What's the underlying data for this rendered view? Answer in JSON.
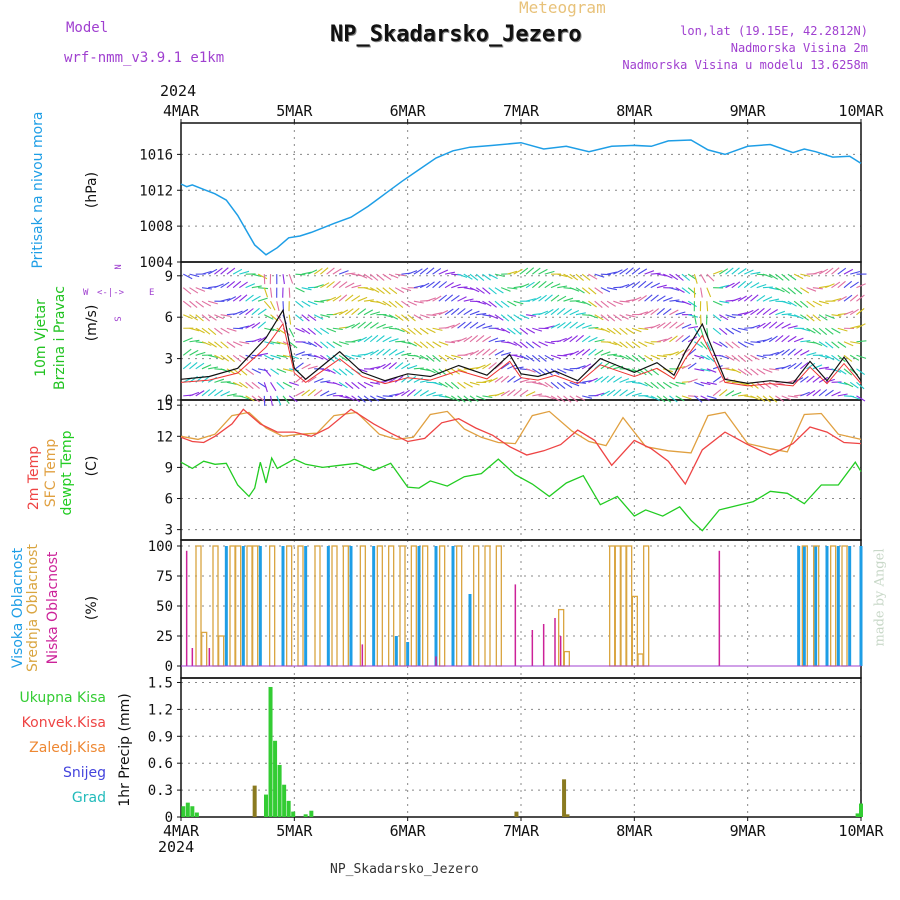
{
  "header": {
    "chart_name": "Meteogram",
    "station": "NP_Skadarsko_Jezero",
    "model_label": "Model",
    "model_name": "wrf-nmm_v3.9.1  e1km",
    "lonlat": "lon,lat (19.15E, 42.2812N)",
    "altitude": "Nadmorska Visina 2m",
    "model_altitude": "Nadmorska Visina u modelu 13.6258m",
    "year_top": "2024",
    "year_bottom": "2024",
    "footer_station": "NP_Skadarsko_Jezero",
    "credit": "made by Angel"
  },
  "colors": {
    "pressure": "#1e9ee6",
    "wind_legend": "#22c322",
    "temp2m": "#ee4444",
    "sfc": "#e0a040",
    "dewpt": "#22cc22",
    "high": "#1e9ee6",
    "mid": "#d9a540",
    "low": "#cc2299",
    "accent_purple": "#a040d0",
    "meteogram_title": "#e8c27a",
    "grid": "#888888",
    "total_precip": "#33cc33",
    "conv_precip": "#ee4444",
    "frozen_precip": "#ee8833",
    "snow": "#4444dd",
    "graupel": "#22bbbb",
    "olive_precip": "#8a7a20"
  },
  "x_axis": {
    "dates": [
      "4MAR",
      "5MAR",
      "6MAR",
      "7MAR",
      "8MAR",
      "9MAR",
      "10MAR"
    ]
  },
  "panels": {
    "pressure": {
      "label": "Pritisak na nivou mora",
      "unit": "(hPa)",
      "ticks": [
        "1004",
        "1008",
        "1012",
        "1016"
      ]
    },
    "wind": {
      "label_line1": "10m Vjetar",
      "label_line2": "Brzina i Pravac",
      "unit": "(m/s)",
      "ticks": [
        "0",
        "3",
        "6",
        "9"
      ],
      "compass": {
        "n": "N",
        "e": "E",
        "w": "W",
        "s": "S"
      }
    },
    "temp": {
      "label_2m": "2m Temp",
      "label_sfc": "SFC Temp",
      "label_dew": "dewpt Temp",
      "unit": "(C)",
      "ticks": [
        "3",
        "6",
        "9",
        "12",
        "15"
      ]
    },
    "cloud": {
      "label_high": "Visoka Oblacnost",
      "label_mid": "Srednja Oblacnost",
      "label_low": "Niska Oblacnost",
      "unit": "(%)",
      "ticks": [
        "0",
        "25",
        "50",
        "75",
        "100"
      ]
    },
    "precip": {
      "legend": [
        "Ukupna Kisa",
        "Konvek.Kisa",
        "Zaledj.Kisa",
        "Snijeg",
        "Grad"
      ],
      "unit": "1hr Precip (mm)",
      "ticks": [
        "0",
        "0.3",
        "0.6",
        "0.9",
        "1.2",
        "1.5"
      ]
    }
  },
  "chart_data": [
    {
      "type": "line",
      "title": "Pritisak na nivou mora",
      "ylabel": "(hPa)",
      "ylim": [
        1004,
        1019.5
      ],
      "x_unit": "days since 4MAR 00UTC",
      "series": [
        {
          "name": "Pritisak na nivou mora",
          "x": [
            0,
            0.05,
            0.1,
            0.2,
            0.3,
            0.4,
            0.5,
            0.6,
            0.65,
            0.75,
            0.85,
            0.95,
            1.05,
            1.15,
            1.25,
            1.35,
            1.5,
            1.65,
            1.8,
            1.95,
            2.1,
            2.25,
            2.4,
            2.55,
            2.75,
            3.0,
            3.2,
            3.4,
            3.6,
            3.8,
            4.0,
            4.15,
            4.3,
            4.5,
            4.65,
            4.8,
            5.0,
            5.2,
            5.4,
            5.5,
            5.6,
            5.75,
            5.9,
            6.0
          ],
          "values": [
            1012.7,
            1012.4,
            1012.6,
            1012.1,
            1011.6,
            1010.9,
            1009.2,
            1007.0,
            1005.9,
            1004.8,
            1005.6,
            1006.7,
            1006.9,
            1007.3,
            1007.8,
            1008.3,
            1009.0,
            1010.2,
            1011.6,
            1013.0,
            1014.3,
            1015.6,
            1016.4,
            1016.8,
            1017.0,
            1017.3,
            1016.6,
            1016.9,
            1016.3,
            1016.9,
            1017.0,
            1016.9,
            1017.5,
            1017.6,
            1016.5,
            1016.0,
            1016.9,
            1017.1,
            1016.2,
            1016.6,
            1016.3,
            1015.7,
            1015.8,
            1015.0
          ]
        }
      ]
    },
    {
      "type": "line",
      "title": "10m Vjetar Brzina i Pravac",
      "ylabel": "(m/s)",
      "ylim": [
        0,
        10
      ],
      "x_unit": "days since 4MAR 00UTC",
      "series": [
        {
          "name": "10m Vjetar",
          "x": [
            0,
            0.25,
            0.5,
            0.75,
            0.9,
            1.0,
            1.1,
            1.25,
            1.4,
            1.6,
            1.8,
            2.0,
            2.2,
            2.45,
            2.7,
            2.9,
            3.0,
            3.15,
            3.3,
            3.5,
            3.7,
            3.85,
            4.0,
            4.2,
            4.35,
            4.45,
            4.6,
            4.8,
            5.0,
            5.2,
            5.4,
            5.55,
            5.7,
            5.85,
            6.0
          ],
          "values": [
            1.5,
            1.7,
            2.3,
            4.5,
            6.5,
            2.3,
            1.5,
            2.5,
            3.5,
            2.0,
            1.4,
            1.9,
            1.7,
            2.5,
            1.8,
            3.3,
            1.9,
            1.7,
            2.1,
            1.4,
            3.0,
            2.5,
            2.0,
            2.7,
            1.8,
            3.5,
            5.5,
            1.5,
            1.2,
            1.4,
            1.2,
            2.8,
            1.4,
            3.1,
            1.4
          ]
        }
      ]
    },
    {
      "type": "line",
      "title": "Temp",
      "ylabel": "(C)",
      "ylim": [
        2,
        15.5
      ],
      "x_unit": "days since 4MAR 00UTC",
      "series": [
        {
          "name": "2m Temp",
          "x": [
            0,
            0.1,
            0.2,
            0.3,
            0.45,
            0.55,
            0.7,
            0.85,
            1.0,
            1.15,
            1.3,
            1.5,
            1.7,
            1.85,
            2.0,
            2.15,
            2.3,
            2.45,
            2.6,
            2.75,
            2.9,
            3.05,
            3.2,
            3.35,
            3.5,
            3.65,
            3.8,
            4.0,
            4.15,
            4.3,
            4.45,
            4.6,
            4.8,
            5.0,
            5.2,
            5.4,
            5.55,
            5.7,
            5.85,
            6.0
          ],
          "values": [
            11.9,
            11.5,
            11.4,
            12.0,
            13.2,
            14.6,
            13.2,
            12.4,
            12.4,
            12.0,
            12.8,
            14.6,
            13.2,
            12.3,
            11.5,
            11.8,
            13.3,
            13.7,
            12.8,
            12.1,
            11.0,
            10.2,
            10.6,
            11.2,
            12.6,
            11.6,
            9.2,
            11.6,
            10.8,
            9.6,
            7.4,
            10.7,
            12.4,
            11.2,
            10.2,
            11.3,
            12.9,
            12.4,
            11.4,
            11.3
          ]
        },
        {
          "name": "SFC Temp",
          "x": [
            0,
            0.15,
            0.3,
            0.45,
            0.6,
            0.75,
            0.9,
            1.05,
            1.2,
            1.35,
            1.55,
            1.75,
            1.9,
            2.05,
            2.2,
            2.35,
            2.5,
            2.65,
            2.8,
            2.95,
            3.1,
            3.25,
            3.45,
            3.6,
            3.75,
            3.9,
            4.1,
            4.3,
            4.5,
            4.65,
            4.8,
            5.0,
            5.2,
            5.35,
            5.5,
            5.65,
            5.8,
            6.0
          ],
          "values": [
            12.0,
            11.7,
            12.2,
            14.0,
            14.3,
            12.8,
            12.0,
            12.2,
            12.3,
            14.0,
            14.3,
            12.2,
            11.7,
            11.9,
            14.1,
            14.4,
            12.7,
            11.9,
            11.4,
            11.3,
            14.0,
            14.4,
            12.5,
            11.5,
            11.1,
            13.8,
            11.0,
            10.6,
            10.4,
            14.0,
            14.3,
            11.3,
            10.8,
            10.5,
            14.1,
            14.2,
            12.2,
            11.7
          ]
        },
        {
          "name": "dewpt Temp",
          "x": [
            0,
            0.1,
            0.2,
            0.3,
            0.4,
            0.5,
            0.6,
            0.65,
            0.7,
            0.75,
            0.8,
            0.85,
            0.9,
            1.0,
            1.1,
            1.25,
            1.4,
            1.55,
            1.7,
            1.85,
            2.0,
            2.1,
            2.2,
            2.35,
            2.5,
            2.65,
            2.8,
            2.95,
            3.1,
            3.25,
            3.4,
            3.55,
            3.7,
            3.85,
            4.0,
            4.1,
            4.25,
            4.4,
            4.5,
            4.6,
            4.75,
            4.9,
            5.05,
            5.2,
            5.35,
            5.5,
            5.65,
            5.8,
            5.95,
            6.0
          ],
          "values": [
            9.5,
            8.9,
            9.6,
            9.3,
            9.4,
            7.3,
            6.2,
            7.0,
            9.5,
            7.5,
            9.9,
            8.9,
            9.2,
            9.8,
            9.3,
            9.0,
            9.2,
            9.4,
            8.7,
            9.4,
            7.1,
            7.0,
            7.7,
            7.2,
            8.1,
            8.4,
            9.8,
            8.3,
            7.4,
            6.2,
            7.5,
            8.2,
            5.4,
            6.2,
            4.3,
            4.9,
            4.3,
            5.2,
            3.9,
            2.9,
            4.9,
            5.3,
            5.7,
            6.7,
            6.5,
            5.5,
            7.3,
            7.3,
            9.5,
            8.6
          ]
        }
      ]
    },
    {
      "type": "bar",
      "title": "Oblacnost",
      "ylabel": "(%)",
      "ylim": [
        0,
        100
      ],
      "x_unit": "days since 4MAR 00UTC",
      "series": [
        {
          "name": "Visoka Oblacnost",
          "x": [
            0.4,
            0.55,
            0.7,
            0.9,
            1.1,
            1.3,
            1.5,
            1.7,
            1.9,
            2.0,
            2.1,
            2.25,
            2.4,
            2.55,
            5.45,
            5.5,
            5.6,
            5.7,
            5.8,
            5.9,
            6.0
          ],
          "values": [
            100,
            100,
            100,
            100,
            100,
            100,
            100,
            100,
            25,
            20,
            100,
            100,
            100,
            60,
            100,
            100,
            100,
            100,
            100,
            100,
            100
          ]
        },
        {
          "name": "Srednja Oblacnost",
          "x": [
            0.15,
            0.2,
            0.3,
            0.35,
            0.45,
            0.5,
            0.6,
            0.65,
            0.8,
            0.95,
            1.05,
            1.2,
            1.35,
            1.45,
            1.6,
            1.75,
            1.85,
            1.95,
            2.05,
            2.15,
            2.3,
            2.45,
            2.6,
            2.7,
            2.8,
            3.35,
            3.4,
            3.8,
            3.85,
            3.9,
            3.95,
            4.0,
            4.05,
            4.1,
            5.5,
            5.6,
            5.75,
            5.85
          ],
          "values": [
            100,
            28,
            100,
            25,
            100,
            100,
            100,
            100,
            100,
            100,
            100,
            100,
            100,
            100,
            100,
            100,
            100,
            100,
            100,
            100,
            100,
            100,
            100,
            100,
            100,
            47,
            12,
            100,
            100,
            100,
            100,
            58,
            10,
            100,
            100,
            100,
            100,
            100
          ]
        },
        {
          "name": "Niska Oblacnost",
          "x": [
            0.05,
            0.1,
            0.25,
            1.6,
            2.25,
            2.95,
            3.1,
            3.2,
            3.3,
            3.35,
            4.75
          ],
          "values": [
            96,
            15,
            15,
            18,
            8,
            68,
            30,
            35,
            40,
            25,
            96
          ]
        }
      ]
    },
    {
      "type": "bar",
      "title": "1hr Precip",
      "ylabel": "1hr Precip (mm)",
      "ylim": [
        0,
        1.5
      ],
      "x_unit": "days since 4MAR 00UTC",
      "series": [
        {
          "name": "Ukupna Kisa",
          "x": [
            0.02,
            0.06,
            0.1,
            0.14,
            0.75,
            0.79,
            0.83,
            0.87,
            0.91,
            0.95,
            0.99,
            1.1,
            1.15,
            5.97,
            6.0
          ],
          "values": [
            0.12,
            0.16,
            0.12,
            0.05,
            0.25,
            1.45,
            0.85,
            0.58,
            0.36,
            0.18,
            0.06,
            0.03,
            0.07,
            0.04,
            0.15
          ]
        },
        {
          "name": "Zaledj.Kisa",
          "x": [
            0.65,
            2.96,
            3.38,
            3.41
          ],
          "values": [
            0.35,
            0.06,
            0.42,
            0.03
          ]
        }
      ]
    }
  ]
}
